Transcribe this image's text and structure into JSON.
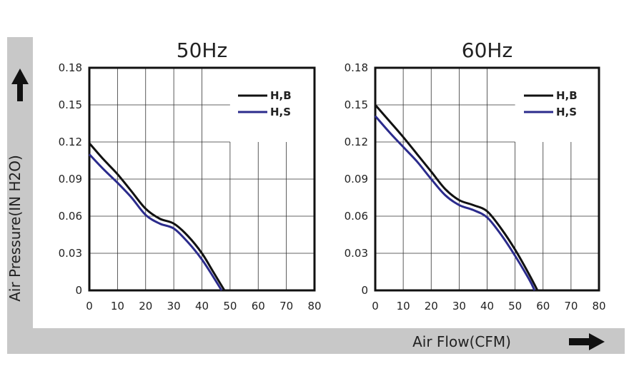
{
  "colors": {
    "band": "#c8c8c8",
    "frame": "#111111",
    "grid": "#333333",
    "series_hb": "#111111",
    "series_hs": "#2b2b8c",
    "arrow": "#111111"
  },
  "y_axis_label": "Air Pressure(IN H2O)",
  "x_axis_label": "Air Flow(CFM)",
  "chart_data": [
    {
      "type": "line",
      "title": "50Hz",
      "xlim": [
        0,
        80
      ],
      "ylim": [
        0,
        0.18
      ],
      "x_ticks": [
        "0",
        "10",
        "20",
        "30",
        "40",
        "50",
        "60",
        "70",
        "80"
      ],
      "y_ticks": [
        "0",
        "0.03",
        "0.06",
        "0.09",
        "0.12",
        "0.15",
        "0.18"
      ],
      "legend_position": "top-right",
      "series": [
        {
          "name": "H,B",
          "color": "#111111",
          "x": [
            0,
            5,
            10,
            15,
            20,
            25,
            30,
            35,
            40,
            44,
            48
          ],
          "y": [
            0.119,
            0.106,
            0.094,
            0.08,
            0.066,
            0.058,
            0.054,
            0.044,
            0.03,
            0.015,
            0
          ]
        },
        {
          "name": "H,S",
          "color": "#2b2b8c",
          "x": [
            0,
            5,
            10,
            15,
            20,
            25,
            30,
            35,
            40,
            44,
            47
          ],
          "y": [
            0.11,
            0.098,
            0.087,
            0.075,
            0.061,
            0.054,
            0.05,
            0.039,
            0.025,
            0.011,
            0
          ]
        }
      ]
    },
    {
      "type": "line",
      "title": "60Hz",
      "xlim": [
        0,
        80
      ],
      "ylim": [
        0,
        0.18
      ],
      "x_ticks": [
        "0",
        "10",
        "20",
        "30",
        "40",
        "50",
        "60",
        "70",
        "80"
      ],
      "y_ticks": [
        "0",
        "0.03",
        "0.06",
        "0.09",
        "0.12",
        "0.15",
        "0.18"
      ],
      "legend_position": "top-right",
      "series": [
        {
          "name": "H,B",
          "color": "#111111",
          "x": [
            0,
            5,
            10,
            15,
            20,
            25,
            30,
            35,
            40,
            45,
            50,
            55,
            58
          ],
          "y": [
            0.15,
            0.137,
            0.124,
            0.11,
            0.096,
            0.082,
            0.073,
            0.069,
            0.064,
            0.05,
            0.033,
            0.013,
            0
          ]
        },
        {
          "name": "H,S",
          "color": "#2b2b8c",
          "x": [
            0,
            5,
            10,
            15,
            20,
            25,
            30,
            35,
            40,
            45,
            50,
            55,
            57
          ],
          "y": [
            0.141,
            0.128,
            0.116,
            0.104,
            0.09,
            0.077,
            0.069,
            0.065,
            0.059,
            0.045,
            0.028,
            0.009,
            0
          ]
        }
      ]
    }
  ]
}
